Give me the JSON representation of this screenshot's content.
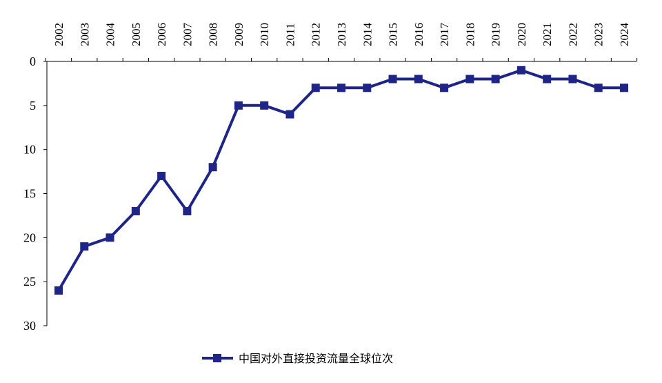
{
  "chart_data": {
    "type": "line",
    "x": [
      "2002",
      "2003",
      "2004",
      "2005",
      "2006",
      "2007",
      "2008",
      "2009",
      "2010",
      "2011",
      "2012",
      "2013",
      "2014",
      "2015",
      "2016",
      "2017",
      "2018",
      "2019",
      "2020",
      "2021",
      "2022",
      "2023",
      "2024"
    ],
    "series": [
      {
        "name": "中国对外直接投资流量全球位次",
        "values": [
          26,
          21,
          20,
          17,
          13,
          17,
          12,
          5,
          5,
          6,
          3,
          3,
          3,
          2,
          2,
          3,
          2,
          2,
          1,
          2,
          2,
          3,
          3
        ],
        "color": "#1f2488",
        "marker": "square"
      }
    ],
    "ylim": [
      0,
      30
    ],
    "y_inverted": true,
    "y_ticks": [
      0,
      5,
      10,
      15,
      20,
      25,
      30
    ],
    "x_tick_rotation": "vertical",
    "x_tick_position": "top",
    "grid": false,
    "legend_placement": "bottom-center"
  }
}
